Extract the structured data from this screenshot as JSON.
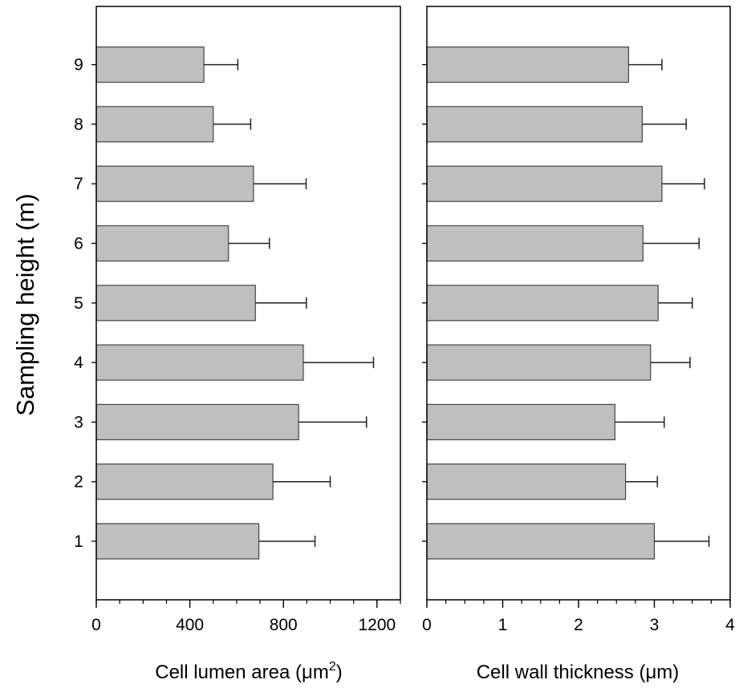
{
  "chart_data": {
    "type": "bar",
    "orientation": "horizontal",
    "ylabel": "Sampling height (m)",
    "categories": [
      "1",
      "2",
      "3",
      "4",
      "5",
      "6",
      "7",
      "8",
      "9"
    ],
    "panels": [
      {
        "xlabel_main": "Cell lumen area (",
        "xlabel_unit": "μm",
        "xlabel_sup": "2",
        "xlabel_end": ")",
        "xlim": [
          0,
          1300
        ],
        "xticks": [
          0,
          400,
          800,
          1200
        ],
        "minor_step": 100,
        "values": [
          695,
          755,
          865,
          885,
          680,
          565,
          672,
          500,
          460
        ],
        "errors": [
          240,
          245,
          290,
          300,
          218,
          175,
          225,
          160,
          145
        ]
      },
      {
        "xlabel_main": "Cell wall thickness (",
        "xlabel_unit": "μm",
        "xlabel_sup": "",
        "xlabel_end": ")",
        "xlim": [
          0,
          4
        ],
        "xticks": [
          0,
          1,
          2,
          3,
          4
        ],
        "minor_step": 0.25,
        "values": [
          3.0,
          2.62,
          2.48,
          2.95,
          3.05,
          2.85,
          3.1,
          2.84,
          2.66
        ],
        "errors": [
          0.72,
          0.42,
          0.65,
          0.52,
          0.45,
          0.74,
          0.56,
          0.58,
          0.44
        ]
      }
    ],
    "bar_color": "#bfbfbf",
    "grid": false,
    "legend": "none"
  }
}
